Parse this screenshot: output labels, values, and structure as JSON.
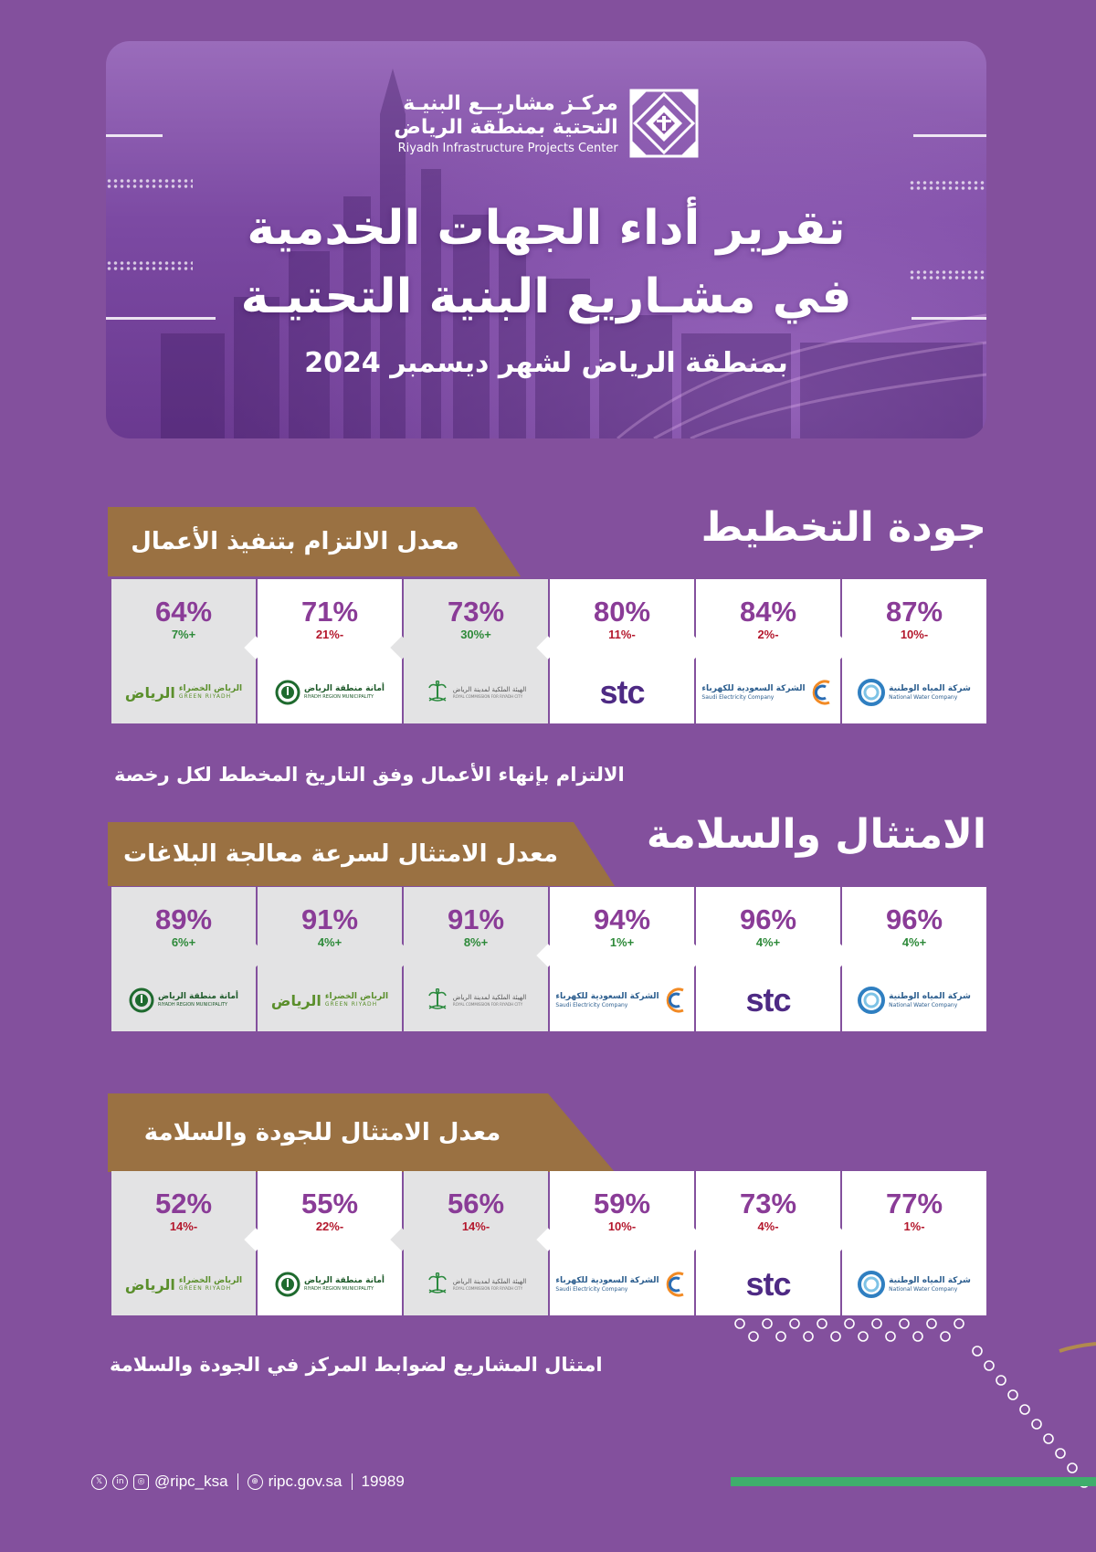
{
  "header": {
    "center_name_ar_line1": "مركـز مشاريــع البنيـة",
    "center_name_ar_line2": "التحتية بمنطقة الرياض",
    "center_name_en": "Riyadh Infrastructure Projects Center",
    "title_line1": "تقرير أداء الجهات الخدمية",
    "title_line2": "في مشـاريع البنية التحتيـة",
    "subtitle": "بمنطقة الرياض لشهر ديسمبر 2024"
  },
  "logos": {
    "nwc": {
      "ar": "شركة المياه الوطنية",
      "en": "National Water Company"
    },
    "sec": {
      "ar": "الشركة السعودية للكهرباء",
      "en": "Saudi Electricity Company"
    },
    "stc": {
      "word": "stc"
    },
    "rcrc": {
      "ar": "الهيئة الملكية لمدينة الرياض",
      "en": "ROYAL COMMISSION FOR RIYADH CITY"
    },
    "amana": {
      "ar": "أمانة منطقة الرياض",
      "en": "RIYADH REGION MUNICIPALITY"
    },
    "green": {
      "ar": "الرياض الخضراء",
      "en": "GREEN RIYADH",
      "mark": "الرياض"
    }
  },
  "sections": [
    {
      "title": "جودة التخطيط",
      "ribbon": "معدل الالتزام بتنفيذ الأعمال",
      "note": "الالتزام بإنهاء الأعمال وفق التاريخ المخطط لكل رخصة",
      "cards": [
        {
          "pct": "87%",
          "chg": "-10%",
          "logo": "nwc"
        },
        {
          "pct": "84%",
          "chg": "-2%",
          "logo": "sec"
        },
        {
          "pct": "80%",
          "chg": "-11%",
          "logo": "stc"
        },
        {
          "pct": "73%",
          "chg": "+30%",
          "logo": "rcrc"
        },
        {
          "pct": "71%",
          "chg": "-21%",
          "logo": "amana"
        },
        {
          "pct": "64%",
          "chg": "+7%",
          "logo": "green"
        }
      ]
    },
    {
      "title": "الامتثال والسلامة",
      "ribbon": "معدل الامتثال لسرعة معالجة البلاغات",
      "note": "",
      "cards": [
        {
          "pct": "96%",
          "chg": "+4%",
          "logo": "nwc"
        },
        {
          "pct": "96%",
          "chg": "+4%",
          "logo": "stc"
        },
        {
          "pct": "94%",
          "chg": "+1%",
          "logo": "sec"
        },
        {
          "pct": "91%",
          "chg": "+8%",
          "logo": "rcrc"
        },
        {
          "pct": "91%",
          "chg": "+4%",
          "logo": "green"
        },
        {
          "pct": "89%",
          "chg": "+6%",
          "logo": "amana"
        }
      ]
    },
    {
      "title": "",
      "ribbon": "معدل الامتثال للجودة والسلامة",
      "note": "امتثال المشاريع لضوابط المركز في الجودة والسلامة",
      "cards": [
        {
          "pct": "77%",
          "chg": "-1%",
          "logo": "nwc"
        },
        {
          "pct": "73%",
          "chg": "-4%",
          "logo": "stc"
        },
        {
          "pct": "59%",
          "chg": "-10%",
          "logo": "sec"
        },
        {
          "pct": "56%",
          "chg": "-14%",
          "logo": "rcrc"
        },
        {
          "pct": "55%",
          "chg": "-22%",
          "logo": "amana"
        },
        {
          "pct": "52%",
          "chg": "-14%",
          "logo": "green"
        }
      ]
    }
  ],
  "footer": {
    "handle": "@ripc_ksa",
    "site": "ripc.gov.sa",
    "phone": "19989"
  },
  "colors": {
    "background": "#83509d",
    "ribbon": "#9a7142",
    "percent": "#8a3c97",
    "positive": "#2e8a3a",
    "negative": "#b4182d"
  }
}
